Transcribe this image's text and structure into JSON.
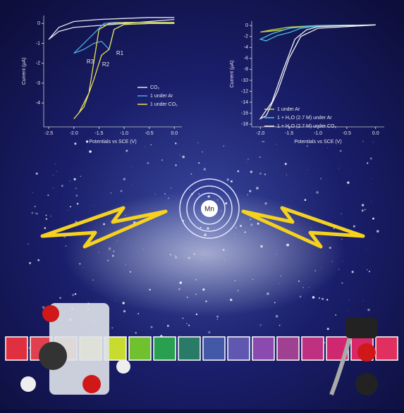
{
  "chart_data": [
    {
      "type": "line",
      "x_label": "Potentials vs SCE (V)",
      "y_label": "Current (μA)",
      "xlim": [
        -2.6,
        0.15
      ],
      "ylim": [
        -5.2,
        0.4
      ],
      "xticks": [
        {
          "value": -2.5,
          "label": "-2.5"
        },
        {
          "value": -2,
          "label": "-2.0"
        },
        -1.5,
        {
          "value": -1,
          "label": "-1.0"
        },
        -0.5,
        {
          "value": 0,
          "label": "0.0"
        }
      ],
      "yticks": [
        0,
        -1,
        -2,
        -3,
        -4
      ],
      "annotations": [
        "R1",
        "R2",
        "R3"
      ],
      "series": [
        {
          "name": "CO₂",
          "color": "#e4e4f4",
          "x": [
            0,
            -0.5,
            -1.0,
            -1.5,
            -2.0,
            -2.3,
            -2.5,
            -2.3,
            -2.0,
            -1.5,
            -1.0,
            -0.5,
            0.0
          ],
          "values": [
            0.2,
            0.1,
            0.0,
            -0.1,
            -0.2,
            -0.4,
            -0.8,
            -0.2,
            0.1,
            0.2,
            0.25,
            0.3,
            0.3
          ]
        },
        {
          "name": "1 under Ar",
          "color": "#4aa8e0",
          "x": [
            0,
            -0.5,
            -1.0,
            -1.2,
            -1.3,
            -1.45,
            -1.6,
            -1.8,
            -2.0,
            -1.8,
            -1.6,
            -1.4,
            -1.2,
            -1.0,
            0
          ],
          "values": [
            0,
            0,
            -0.05,
            -0.3,
            -1.3,
            -0.9,
            -1.0,
            -1.3,
            -1.5,
            -1.0,
            -0.5,
            0.0,
            0.05,
            0.05,
            0.05
          ]
        },
        {
          "name": "1 under CO₂",
          "color": "#e6e05a",
          "x": [
            0,
            -0.5,
            -1.0,
            -1.2,
            -1.3,
            -1.45,
            -1.6,
            -1.8,
            -2.0,
            -1.9,
            -1.7,
            -1.5,
            -1.3,
            -1.0,
            0
          ],
          "values": [
            0,
            0,
            -0.05,
            -0.3,
            -1.3,
            -1.6,
            -2.8,
            -4.2,
            -4.8,
            -4.5,
            -3.5,
            -0.3,
            0.0,
            0.05,
            0.05
          ]
        }
      ]
    },
    {
      "type": "line",
      "x_label": "Potentials vs SCE (V)",
      "y_label": "Current (μA)",
      "xlim": [
        -2.15,
        0.15
      ],
      "ylim": [
        -18.5,
        0.8
      ],
      "xticks": [
        {
          "value": -2,
          "label": "-2.0"
        },
        -1.5,
        {
          "value": -1,
          "label": "-1.0"
        },
        -0.5,
        {
          "value": 0,
          "label": "0.0"
        }
      ],
      "yticks": [
        0,
        -2,
        -4,
        -6,
        -8,
        -10,
        -12,
        -14,
        -16,
        -18
      ],
      "series": [
        {
          "name": "1 under Ar",
          "color": "#c8d83c",
          "x": [
            0,
            -0.5,
            -1.0,
            -1.4,
            -1.6,
            -1.8,
            -2.0,
            -1.8,
            -1.5,
            -1.0,
            0
          ],
          "values": [
            0.1,
            0,
            -0.1,
            -0.3,
            -0.8,
            -1.0,
            -1.2,
            -0.8,
            -0.3,
            0,
            0.1
          ]
        },
        {
          "name": "1 + H₂O (2.7 M) under Ar",
          "color": "#4ac0e0",
          "x": [
            0,
            -0.5,
            -1.0,
            -1.3,
            -1.5,
            -1.7,
            -1.9,
            -2.0,
            -1.8,
            -1.5,
            -1.0,
            0
          ],
          "values": [
            0.1,
            0,
            -0.1,
            -0.5,
            -1.3,
            -1.8,
            -2.8,
            -2.5,
            -1.5,
            -0.5,
            0,
            0.1
          ]
        },
        {
          "name": "1 + H₂O (2.7 M) under CO₂",
          "color": "#f2f2f2",
          "x": [
            0,
            -0.5,
            -1.0,
            -1.2,
            -1.4,
            -1.6,
            -1.8,
            -2.0,
            -1.9,
            -1.7,
            -1.5,
            -1.3,
            -1.0,
            0
          ],
          "values": [
            0.1,
            0,
            -0.2,
            -0.8,
            -2.5,
            -8,
            -14,
            -17,
            -16.5,
            -12,
            -6,
            -2,
            -0.5,
            0.1
          ]
        }
      ]
    }
  ],
  "atom_label": "Mn"
}
